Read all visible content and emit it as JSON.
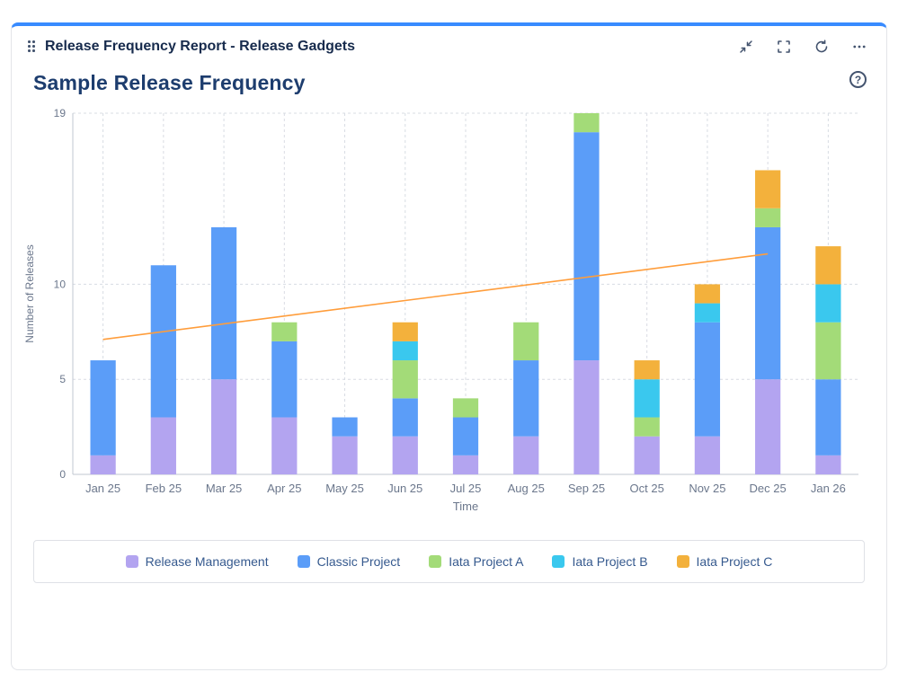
{
  "colors": {
    "accent": "#388BFF",
    "grid": "#D8DCE3",
    "axis": "#C1C7D0",
    "axis_text": "#6B778C",
    "legend_text": "#35598E"
  },
  "header": {
    "title": "Release Frequency Report - Release Gadgets",
    "actions": [
      "collapse",
      "fullscreen",
      "refresh",
      "more"
    ]
  },
  "chart": {
    "title": "Sample Release Frequency",
    "help_glyph": "?"
  },
  "chart_data": {
    "type": "bar",
    "stacked": true,
    "title": "Sample Release Frequency",
    "xlabel": "Time",
    "ylabel": "Number of Releases",
    "ylim": [
      0,
      19
    ],
    "yticks": [
      0,
      5,
      10,
      19
    ],
    "grid": "dashed horizontal and vertical",
    "legend_position": "bottom",
    "categories": [
      "Jan 25",
      "Feb 25",
      "Mar 25",
      "Apr 25",
      "May 25",
      "Jun 25",
      "Jul 25",
      "Aug 25",
      "Sep 25",
      "Oct 25",
      "Nov 25",
      "Dec 25",
      "Jan 26"
    ],
    "series": [
      {
        "name": "Release Management",
        "color": "#B3A4F0",
        "values": [
          1,
          3,
          5,
          3,
          2,
          2,
          1,
          2,
          6,
          2,
          2,
          5,
          1
        ]
      },
      {
        "name": "Classic Project",
        "color": "#5B9DF8",
        "values": [
          5,
          8,
          8,
          4,
          1,
          2,
          2,
          4,
          12,
          0,
          6,
          8,
          4
        ]
      },
      {
        "name": "Iata Project A",
        "color": "#A3DB78",
        "values": [
          0,
          0,
          0,
          1,
          0,
          2,
          1,
          2,
          1,
          1,
          0,
          1,
          3
        ]
      },
      {
        "name": "Iata Project B",
        "color": "#3AC8EE",
        "values": [
          0,
          0,
          0,
          0,
          0,
          1,
          0,
          0,
          0,
          2,
          1,
          0,
          2
        ]
      },
      {
        "name": "Iata Project C",
        "color": "#F3B13C",
        "values": [
          0,
          0,
          0,
          0,
          0,
          1,
          0,
          0,
          0,
          1,
          1,
          2,
          2
        ]
      }
    ],
    "trend": {
      "color": "#FF9D3B",
      "points": [
        {
          "x": "Jan 25",
          "y": 7.1
        },
        {
          "x": "Dec 25",
          "y": 11.6
        }
      ]
    }
  }
}
